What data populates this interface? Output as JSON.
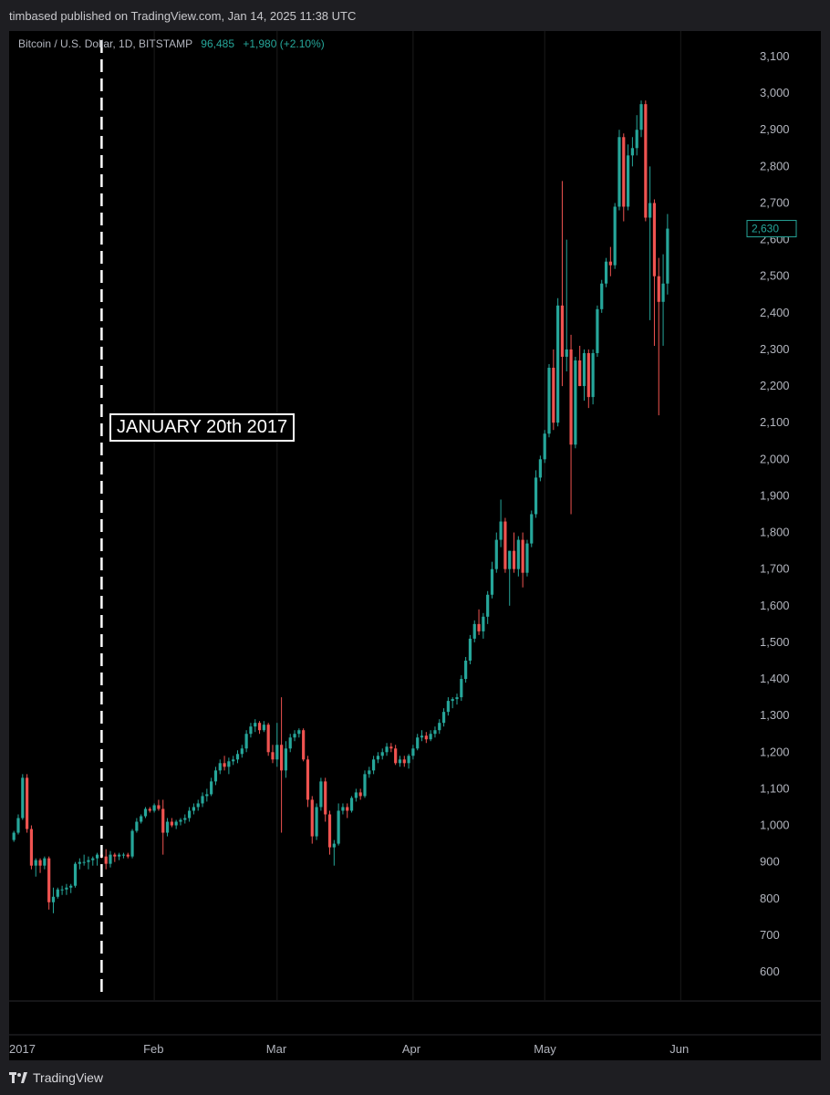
{
  "header": {
    "published": "timbased published on TradingView.com, Jan 14, 2025 11:38 UTC"
  },
  "legend": {
    "symbol": "Bitcoin / U.S. Dollar, 1D, BITSTAMP",
    "last": "96,485",
    "change": "+1,980 (+2.10%)"
  },
  "annotation": {
    "text": "JANUARY 20th 2017"
  },
  "footer": {
    "brand": "TradingView"
  },
  "colors": {
    "up": "#26a69a",
    "down": "#ef5350",
    "background": "#000000",
    "grid": "#1a1a1a",
    "text": "#b2b5be",
    "marker": "#ffffff"
  },
  "chart_data": {
    "type": "candlestick",
    "title": "",
    "xlabel": "",
    "ylabel": "",
    "ylim": [
      550,
      3150
    ],
    "y_ticks": [
      "3,100",
      "3,000",
      "2,900",
      "2,800",
      "2,700",
      "2,600",
      "2,500",
      "2,400",
      "2,300",
      "2,200",
      "2,100",
      "2,000",
      "1,900",
      "1,800",
      "1,700",
      "1,600",
      "1,500",
      "1,400",
      "1,300",
      "1,200",
      "1,100",
      "1,000",
      "900",
      "800",
      "700",
      "600"
    ],
    "x_ticks": [
      "2017",
      "Feb",
      "Mar",
      "Apr",
      "May",
      "Jun"
    ],
    "x_tick_days": [
      0,
      31,
      59,
      90,
      120,
      151
    ],
    "current_price": "2,630",
    "current_value": 2630,
    "vertical_marker_day": 19,
    "candles": [
      [
        -1,
        960,
        985,
        955,
        980
      ],
      [
        0,
        980,
        1030,
        975,
        1020
      ],
      [
        1,
        1020,
        1140,
        1015,
        1130
      ],
      [
        2,
        1130,
        1140,
        980,
        990
      ],
      [
        3,
        990,
        1000,
        880,
        890
      ],
      [
        4,
        890,
        910,
        860,
        905
      ],
      [
        5,
        905,
        910,
        870,
        890
      ],
      [
        6,
        890,
        915,
        880,
        910
      ],
      [
        7,
        910,
        915,
        770,
        790
      ],
      [
        8,
        790,
        830,
        760,
        805
      ],
      [
        9,
        805,
        830,
        800,
        825
      ],
      [
        10,
        825,
        835,
        810,
        825
      ],
      [
        11,
        825,
        840,
        810,
        830
      ],
      [
        12,
        830,
        840,
        815,
        835
      ],
      [
        13,
        835,
        900,
        830,
        895
      ],
      [
        14,
        895,
        910,
        880,
        900
      ],
      [
        15,
        900,
        920,
        890,
        900
      ],
      [
        16,
        900,
        915,
        880,
        905
      ],
      [
        17,
        905,
        915,
        890,
        910
      ],
      [
        18,
        910,
        925,
        890,
        920
      ],
      [
        19,
        920,
        930,
        910,
        915
      ],
      [
        20,
        915,
        935,
        880,
        895
      ],
      [
        21,
        895,
        930,
        885,
        920
      ],
      [
        22,
        920,
        925,
        900,
        915
      ],
      [
        23,
        915,
        925,
        905,
        920
      ],
      [
        24,
        920,
        925,
        910,
        920
      ],
      [
        25,
        920,
        925,
        910,
        915
      ],
      [
        26,
        915,
        990,
        910,
        985
      ],
      [
        27,
        985,
        1020,
        980,
        1010
      ],
      [
        28,
        1010,
        1030,
        1005,
        1025
      ],
      [
        29,
        1025,
        1050,
        1020,
        1045
      ],
      [
        30,
        1045,
        1050,
        1035,
        1040
      ],
      [
        31,
        1040,
        1060,
        1035,
        1055
      ],
      [
        32,
        1055,
        1070,
        1040,
        1045
      ],
      [
        33,
        1045,
        1070,
        920,
        980
      ],
      [
        34,
        980,
        1020,
        970,
        1010
      ],
      [
        35,
        1010,
        1020,
        995,
        1000
      ],
      [
        36,
        1000,
        1015,
        990,
        1010
      ],
      [
        37,
        1010,
        1020,
        1000,
        1015
      ],
      [
        38,
        1015,
        1030,
        1005,
        1020
      ],
      [
        39,
        1020,
        1050,
        1010,
        1040
      ],
      [
        40,
        1040,
        1060,
        1030,
        1050
      ],
      [
        41,
        1050,
        1070,
        1040,
        1060
      ],
      [
        42,
        1060,
        1090,
        1050,
        1080
      ],
      [
        43,
        1080,
        1100,
        1065,
        1085
      ],
      [
        44,
        1085,
        1130,
        1080,
        1120
      ],
      [
        45,
        1120,
        1160,
        1110,
        1150
      ],
      [
        46,
        1150,
        1180,
        1140,
        1170
      ],
      [
        47,
        1170,
        1190,
        1150,
        1160
      ],
      [
        48,
        1160,
        1185,
        1140,
        1175
      ],
      [
        49,
        1175,
        1190,
        1165,
        1180
      ],
      [
        50,
        1180,
        1205,
        1170,
        1195
      ],
      [
        51,
        1195,
        1220,
        1185,
        1210
      ],
      [
        52,
        1210,
        1260,
        1200,
        1250
      ],
      [
        53,
        1250,
        1280,
        1240,
        1270
      ],
      [
        54,
        1270,
        1290,
        1255,
        1280
      ],
      [
        55,
        1280,
        1285,
        1250,
        1260
      ],
      [
        56,
        1260,
        1285,
        1255,
        1275
      ],
      [
        57,
        1275,
        1280,
        1190,
        1200
      ],
      [
        58,
        1200,
        1220,
        1170,
        1180
      ],
      [
        59,
        1180,
        1280,
        1160,
        1220
      ],
      [
        60,
        1220,
        1350,
        980,
        1150
      ],
      [
        61,
        1150,
        1230,
        1130,
        1210
      ],
      [
        62,
        1210,
        1250,
        1200,
        1240
      ],
      [
        63,
        1240,
        1260,
        1230,
        1250
      ],
      [
        64,
        1250,
        1265,
        1240,
        1260
      ],
      [
        65,
        1260,
        1265,
        1175,
        1180
      ],
      [
        66,
        1180,
        1190,
        1050,
        1070
      ],
      [
        67,
        1070,
        1080,
        950,
        970
      ],
      [
        68,
        970,
        1060,
        960,
        1050
      ],
      [
        69,
        1050,
        1130,
        1040,
        1120
      ],
      [
        70,
        1120,
        1130,
        1010,
        1030
      ],
      [
        71,
        1030,
        1040,
        920,
        940
      ],
      [
        72,
        940,
        960,
        890,
        950
      ],
      [
        73,
        950,
        1060,
        945,
        1040
      ],
      [
        74,
        1040,
        1060,
        1030,
        1050
      ],
      [
        75,
        1050,
        1060,
        1020,
        1040
      ],
      [
        76,
        1040,
        1080,
        1035,
        1075
      ],
      [
        77,
        1075,
        1100,
        1065,
        1090
      ],
      [
        78,
        1090,
        1100,
        1070,
        1080
      ],
      [
        79,
        1080,
        1150,
        1075,
        1140
      ],
      [
        80,
        1140,
        1160,
        1130,
        1150
      ],
      [
        81,
        1150,
        1190,
        1140,
        1180
      ],
      [
        82,
        1180,
        1200,
        1170,
        1190
      ],
      [
        83,
        1190,
        1210,
        1180,
        1200
      ],
      [
        84,
        1200,
        1225,
        1190,
        1215
      ],
      [
        85,
        1215,
        1225,
        1200,
        1210
      ],
      [
        86,
        1210,
        1220,
        1165,
        1170
      ],
      [
        87,
        1170,
        1190,
        1160,
        1180
      ],
      [
        88,
        1180,
        1190,
        1160,
        1170
      ],
      [
        89,
        1170,
        1195,
        1155,
        1190
      ],
      [
        90,
        1190,
        1220,
        1180,
        1210
      ],
      [
        91,
        1210,
        1250,
        1205,
        1240
      ],
      [
        92,
        1240,
        1260,
        1230,
        1245
      ],
      [
        93,
        1245,
        1255,
        1225,
        1235
      ],
      [
        94,
        1235,
        1260,
        1230,
        1250
      ],
      [
        95,
        1250,
        1270,
        1240,
        1260
      ],
      [
        96,
        1260,
        1290,
        1250,
        1280
      ],
      [
        97,
        1280,
        1320,
        1270,
        1310
      ],
      [
        98,
        1310,
        1350,
        1300,
        1340
      ],
      [
        99,
        1340,
        1350,
        1320,
        1345
      ],
      [
        100,
        1345,
        1360,
        1330,
        1350
      ],
      [
        101,
        1350,
        1410,
        1340,
        1400
      ],
      [
        102,
        1400,
        1460,
        1390,
        1450
      ],
      [
        103,
        1450,
        1520,
        1440,
        1510
      ],
      [
        104,
        1510,
        1560,
        1500,
        1550
      ],
      [
        105,
        1550,
        1590,
        1520,
        1530
      ],
      [
        106,
        1530,
        1580,
        1510,
        1570
      ],
      [
        107,
        1570,
        1640,
        1550,
        1630
      ],
      [
        108,
        1630,
        1720,
        1620,
        1700
      ],
      [
        109,
        1700,
        1800,
        1690,
        1780
      ],
      [
        110,
        1780,
        1890,
        1760,
        1830
      ],
      [
        111,
        1830,
        1840,
        1690,
        1700
      ],
      [
        112,
        1700,
        1750,
        1600,
        1750
      ],
      [
        113,
        1750,
        1800,
        1690,
        1700
      ],
      [
        114,
        1700,
        1790,
        1680,
        1780
      ],
      [
        115,
        1780,
        1800,
        1650,
        1690
      ],
      [
        116,
        1690,
        1780,
        1680,
        1770
      ],
      [
        117,
        1770,
        1860,
        1760,
        1850
      ],
      [
        118,
        1850,
        1970,
        1840,
        1950
      ],
      [
        119,
        1950,
        2010,
        1940,
        2000
      ],
      [
        120,
        2000,
        2080,
        1990,
        2070
      ],
      [
        121,
        2070,
        2260,
        2060,
        2250
      ],
      [
        122,
        2250,
        2300,
        2080,
        2100
      ],
      [
        123,
        2100,
        2440,
        2090,
        2420
      ],
      [
        124,
        2420,
        2760,
        2200,
        2280
      ],
      [
        125,
        2280,
        2600,
        2240,
        2300
      ],
      [
        126,
        2300,
        2340,
        1850,
        2040
      ],
      [
        127,
        2040,
        2280,
        2030,
        2270
      ],
      [
        128,
        2270,
        2310,
        2200,
        2200
      ],
      [
        129,
        2200,
        2300,
        2160,
        2290
      ],
      [
        130,
        2290,
        2300,
        2140,
        2170
      ],
      [
        131,
        2170,
        2300,
        2150,
        2290
      ],
      [
        132,
        2290,
        2420,
        2280,
        2410
      ],
      [
        133,
        2410,
        2490,
        2400,
        2480
      ],
      [
        134,
        2480,
        2550,
        2470,
        2540
      ],
      [
        135,
        2540,
        2580,
        2500,
        2530
      ],
      [
        136,
        2530,
        2700,
        2520,
        2690
      ],
      [
        137,
        2690,
        2900,
        2680,
        2880
      ],
      [
        138,
        2880,
        2890,
        2650,
        2690
      ],
      [
        139,
        2690,
        2860,
        2680,
        2830
      ],
      [
        140,
        2830,
        2880,
        2800,
        2850
      ],
      [
        141,
        2850,
        2940,
        2830,
        2900
      ],
      [
        142,
        2900,
        2980,
        2880,
        2970
      ],
      [
        143,
        2970,
        2980,
        2650,
        2660
      ],
      [
        144,
        2660,
        2800,
        2380,
        2700
      ],
      [
        145,
        2700,
        2710,
        2310,
        2500
      ],
      [
        146,
        2500,
        2550,
        2120,
        2430
      ],
      [
        147,
        2430,
        2560,
        2310,
        2480
      ],
      [
        148,
        2480,
        2670,
        2450,
        2630
      ]
    ]
  }
}
